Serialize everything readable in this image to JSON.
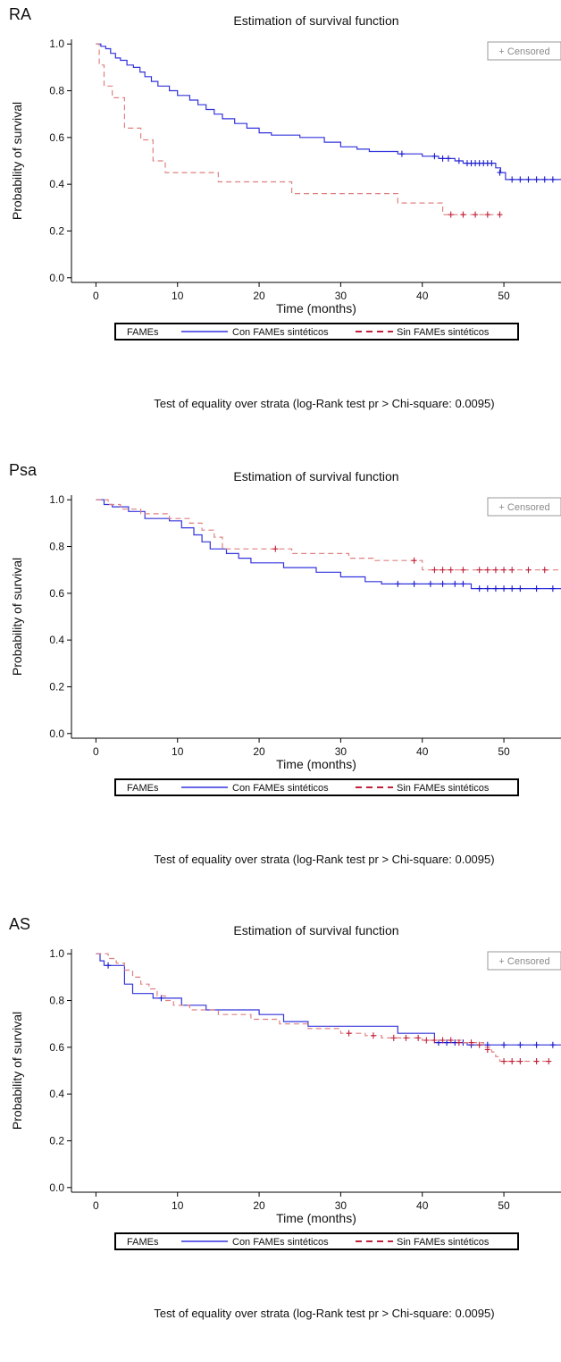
{
  "colors": {
    "con": "#3333dd",
    "con_censor": "#1a1acc",
    "sin": "#e08080",
    "sin_censor": "#c0203a",
    "axis": "#000000",
    "censored_box": "#999999"
  },
  "chart_data": [
    {
      "type": "line",
      "panel_label": "RA",
      "title": "Estimation of survival function",
      "xlabel": "Time (months)",
      "ylabel": "Probability of survival",
      "xlim": [
        -3,
        57
      ],
      "ylim": [
        -0.02,
        1.02
      ],
      "x_ticks": [
        0,
        10,
        20,
        30,
        40,
        50
      ],
      "y_ticks": [
        0.0,
        0.2,
        0.4,
        0.6,
        0.8,
        1.0
      ],
      "y_tick_labels": [
        "0.0",
        "0.2",
        "0.4",
        "0.6",
        "0.8",
        "1.0"
      ],
      "grid": false,
      "censored_label": "+ Censored",
      "legend": {
        "title": "FAMEs",
        "entries": [
          "Con FAMEs sintéticos",
          "Sin FAMEs sintéticos"
        ],
        "placement": "bottom"
      },
      "footnote": "Test of equality over strata (log-Rank test pr > Chi-square: 0.0095)",
      "series": [
        {
          "name": "Con FAMEs sintéticos",
          "steps": [
            [
              0,
              1.0
            ],
            [
              0.6,
              0.99
            ],
            [
              1.2,
              0.98
            ],
            [
              1.8,
              0.96
            ],
            [
              2.4,
              0.94
            ],
            [
              3.0,
              0.93
            ],
            [
              3.8,
              0.91
            ],
            [
              4.6,
              0.9
            ],
            [
              5.4,
              0.88
            ],
            [
              6.0,
              0.86
            ],
            [
              6.8,
              0.84
            ],
            [
              7.6,
              0.82
            ],
            [
              9.0,
              0.8
            ],
            [
              10.0,
              0.78
            ],
            [
              11.5,
              0.76
            ],
            [
              12.5,
              0.74
            ],
            [
              13.5,
              0.72
            ],
            [
              14.5,
              0.7
            ],
            [
              15.5,
              0.68
            ],
            [
              17.0,
              0.66
            ],
            [
              18.5,
              0.64
            ],
            [
              20.0,
              0.62
            ],
            [
              21.5,
              0.61
            ],
            [
              25.0,
              0.6
            ],
            [
              28.0,
              0.58
            ],
            [
              30.0,
              0.56
            ],
            [
              32.0,
              0.55
            ],
            [
              33.5,
              0.54
            ],
            [
              37.0,
              0.53
            ],
            [
              40.0,
              0.52
            ],
            [
              42.0,
              0.51
            ],
            [
              44.0,
              0.5
            ],
            [
              45.0,
              0.49
            ],
            [
              49.0,
              0.47
            ],
            [
              49.6,
              0.45
            ],
            [
              50.2,
              0.42
            ],
            [
              57,
              0.42
            ]
          ],
          "censored": [
            [
              37.5,
              0.53
            ],
            [
              41.5,
              0.52
            ],
            [
              42.5,
              0.51
            ],
            [
              43.2,
              0.51
            ],
            [
              44.5,
              0.5
            ],
            [
              45.5,
              0.49
            ],
            [
              46.0,
              0.49
            ],
            [
              46.5,
              0.49
            ],
            [
              47.0,
              0.49
            ],
            [
              47.5,
              0.49
            ],
            [
              48.0,
              0.49
            ],
            [
              48.5,
              0.49
            ],
            [
              49.5,
              0.45
            ],
            [
              51.0,
              0.42
            ],
            [
              52.0,
              0.42
            ],
            [
              53.0,
              0.42
            ],
            [
              54.0,
              0.42
            ],
            [
              55.0,
              0.42
            ],
            [
              56.0,
              0.42
            ]
          ]
        },
        {
          "name": "Sin FAMEs sintéticos",
          "steps": [
            [
              0,
              1.0
            ],
            [
              0.4,
              0.91
            ],
            [
              1.0,
              0.82
            ],
            [
              2.0,
              0.77
            ],
            [
              3.5,
              0.64
            ],
            [
              5.5,
              0.59
            ],
            [
              7.0,
              0.5
            ],
            [
              8.5,
              0.45
            ],
            [
              15.0,
              0.41
            ],
            [
              24.0,
              0.36
            ],
            [
              37.0,
              0.32
            ],
            [
              42.5,
              0.27
            ],
            [
              49.5,
              0.27
            ]
          ],
          "censored": [
            [
              43.5,
              0.27
            ],
            [
              45.0,
              0.27
            ],
            [
              46.5,
              0.27
            ],
            [
              48.0,
              0.27
            ],
            [
              49.5,
              0.27
            ]
          ]
        }
      ]
    },
    {
      "type": "line",
      "panel_label": "Psa",
      "title": "Estimation of survival function",
      "xlabel": "Time (months)",
      "ylabel": "Probability of survival",
      "xlim": [
        -3,
        57
      ],
      "ylim": [
        -0.02,
        1.02
      ],
      "x_ticks": [
        0,
        10,
        20,
        30,
        40,
        50
      ],
      "y_ticks": [
        0.0,
        0.2,
        0.4,
        0.6,
        0.8,
        1.0
      ],
      "y_tick_labels": [
        "0.0",
        "0.2",
        "0.4",
        "0.6",
        "0.8",
        "1.0"
      ],
      "grid": false,
      "censored_label": "+ Censored",
      "legend": {
        "title": "FAMEs",
        "entries": [
          "Con FAMEs sintéticos",
          "Sin FAMEs sintéticos"
        ],
        "placement": "bottom"
      },
      "footnote": "Test of equality over strata (log-Rank test pr > Chi-square: 0.0095)",
      "series": [
        {
          "name": "Con FAMEs sintéticos",
          "steps": [
            [
              0,
              1.0
            ],
            [
              1.0,
              0.98
            ],
            [
              2.0,
              0.97
            ],
            [
              4.0,
              0.95
            ],
            [
              6.0,
              0.92
            ],
            [
              9.0,
              0.91
            ],
            [
              10.5,
              0.88
            ],
            [
              12.0,
              0.85
            ],
            [
              13.0,
              0.82
            ],
            [
              14.0,
              0.79
            ],
            [
              16.0,
              0.77
            ],
            [
              17.5,
              0.75
            ],
            [
              19.0,
              0.73
            ],
            [
              23.0,
              0.71
            ],
            [
              27.0,
              0.69
            ],
            [
              30.0,
              0.67
            ],
            [
              33.0,
              0.65
            ],
            [
              35.0,
              0.64
            ],
            [
              40.0,
              0.64
            ],
            [
              46.0,
              0.62
            ],
            [
              57,
              0.62
            ]
          ],
          "censored": [
            [
              37.0,
              0.64
            ],
            [
              39.0,
              0.64
            ],
            [
              41.0,
              0.64
            ],
            [
              42.5,
              0.64
            ],
            [
              44.0,
              0.64
            ],
            [
              45.0,
              0.64
            ],
            [
              47.0,
              0.62
            ],
            [
              48.0,
              0.62
            ],
            [
              49.0,
              0.62
            ],
            [
              50.0,
              0.62
            ],
            [
              51.0,
              0.62
            ],
            [
              52.0,
              0.62
            ],
            [
              54.0,
              0.62
            ],
            [
              56.0,
              0.62
            ]
          ]
        },
        {
          "name": "Sin FAMEs sintéticos",
          "steps": [
            [
              0,
              1.0
            ],
            [
              1.5,
              0.98
            ],
            [
              3.0,
              0.96
            ],
            [
              5.5,
              0.94
            ],
            [
              9.0,
              0.92
            ],
            [
              11.5,
              0.9
            ],
            [
              13.0,
              0.87
            ],
            [
              14.5,
              0.84
            ],
            [
              15.5,
              0.79
            ],
            [
              24.0,
              0.77
            ],
            [
              31.0,
              0.75
            ],
            [
              34.0,
              0.74
            ],
            [
              40.0,
              0.7
            ],
            [
              57,
              0.7
            ]
          ],
          "censored": [
            [
              22.0,
              0.79
            ],
            [
              39.0,
              0.74
            ],
            [
              41.5,
              0.7
            ],
            [
              42.5,
              0.7
            ],
            [
              43.5,
              0.7
            ],
            [
              45.0,
              0.7
            ],
            [
              47.0,
              0.7
            ],
            [
              48.0,
              0.7
            ],
            [
              49.0,
              0.7
            ],
            [
              50.0,
              0.7
            ],
            [
              51.0,
              0.7
            ],
            [
              53.0,
              0.7
            ],
            [
              55.0,
              0.7
            ]
          ]
        }
      ]
    },
    {
      "type": "line",
      "panel_label": "AS",
      "title": "Estimation of survival function",
      "xlabel": "Time (months)",
      "ylabel": "Probability of survival",
      "xlim": [
        -3,
        57
      ],
      "ylim": [
        -0.02,
        1.02
      ],
      "x_ticks": [
        0,
        10,
        20,
        30,
        40,
        50
      ],
      "y_ticks": [
        0.0,
        0.2,
        0.4,
        0.6,
        0.8,
        1.0
      ],
      "y_tick_labels": [
        "0.0",
        "0.2",
        "0.4",
        "0.6",
        "0.8",
        "1.0"
      ],
      "grid": false,
      "censored_label": "+ Censored",
      "legend": {
        "title": "FAMEs",
        "entries": [
          "Con FAMEs sintéticos",
          "Sin FAMEs sintéticos"
        ],
        "placement": "bottom"
      },
      "footnote": "Test of equality over strata (log-Rank test pr > Chi-square: 0.0095)",
      "series": [
        {
          "name": "Con FAMEs sintéticos",
          "steps": [
            [
              0,
              1.0
            ],
            [
              0.5,
              0.97
            ],
            [
              1.0,
              0.95
            ],
            [
              3.5,
              0.87
            ],
            [
              4.5,
              0.83
            ],
            [
              7.0,
              0.81
            ],
            [
              10.5,
              0.78
            ],
            [
              13.5,
              0.76
            ],
            [
              20.0,
              0.74
            ],
            [
              23.0,
              0.71
            ],
            [
              26.0,
              0.69
            ],
            [
              37.0,
              0.66
            ],
            [
              41.5,
              0.62
            ],
            [
              45.5,
              0.61
            ],
            [
              57,
              0.61
            ]
          ],
          "censored": [
            [
              1.5,
              0.95
            ],
            [
              8.0,
              0.81
            ],
            [
              42.0,
              0.62
            ],
            [
              43.0,
              0.62
            ],
            [
              44.0,
              0.62
            ],
            [
              45.0,
              0.62
            ],
            [
              46.0,
              0.61
            ],
            [
              48.0,
              0.61
            ],
            [
              50.0,
              0.61
            ],
            [
              52.0,
              0.61
            ],
            [
              54.0,
              0.61
            ],
            [
              56.0,
              0.61
            ]
          ]
        },
        {
          "name": "Sin FAMEs sintéticos",
          "steps": [
            [
              0,
              1.0
            ],
            [
              1.5,
              0.98
            ],
            [
              2.5,
              0.96
            ],
            [
              3.5,
              0.93
            ],
            [
              4.5,
              0.9
            ],
            [
              5.5,
              0.87
            ],
            [
              6.5,
              0.85
            ],
            [
              7.5,
              0.82
            ],
            [
              8.5,
              0.8
            ],
            [
              9.5,
              0.78
            ],
            [
              11.5,
              0.76
            ],
            [
              15.0,
              0.74
            ],
            [
              19.0,
              0.72
            ],
            [
              22.5,
              0.7
            ],
            [
              26.0,
              0.68
            ],
            [
              30.0,
              0.66
            ],
            [
              33.0,
              0.65
            ],
            [
              35.0,
              0.64
            ],
            [
              39.0,
              0.64
            ],
            [
              40.0,
              0.63
            ],
            [
              45.0,
              0.62
            ],
            [
              47.5,
              0.6
            ],
            [
              48.5,
              0.58
            ],
            [
              49.0,
              0.56
            ],
            [
              49.5,
              0.54
            ],
            [
              55.5,
              0.54
            ]
          ],
          "censored": [
            [
              31.0,
              0.66
            ],
            [
              34.0,
              0.65
            ],
            [
              36.5,
              0.64
            ],
            [
              38.0,
              0.64
            ],
            [
              39.5,
              0.64
            ],
            [
              40.5,
              0.63
            ],
            [
              41.5,
              0.63
            ],
            [
              42.5,
              0.63
            ],
            [
              43.5,
              0.63
            ],
            [
              44.5,
              0.62
            ],
            [
              46.0,
              0.62
            ],
            [
              47.0,
              0.61
            ],
            [
              48.0,
              0.59
            ],
            [
              50.0,
              0.54
            ],
            [
              51.0,
              0.54
            ],
            [
              52.0,
              0.54
            ],
            [
              54.0,
              0.54
            ],
            [
              55.5,
              0.54
            ]
          ]
        }
      ]
    }
  ]
}
